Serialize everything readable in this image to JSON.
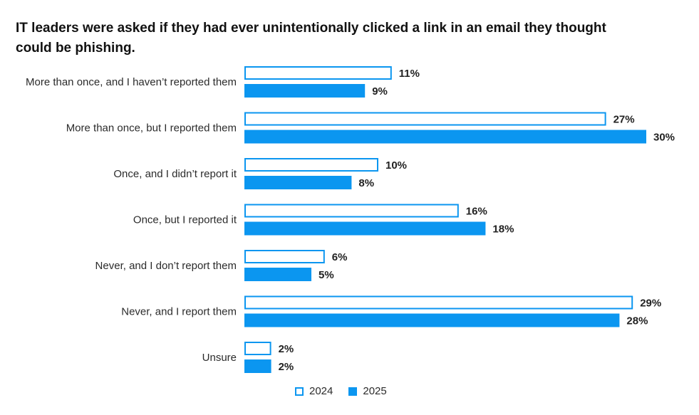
{
  "chart_data": {
    "type": "bar",
    "orientation": "horizontal",
    "title": "IT leaders were asked if they had ever unintentionally clicked a link in an email they thought could be phishing.",
    "categories": [
      "More than once, and I haven’t reported them",
      "More than once, but I reported them",
      "Once, and I didn’t report it",
      "Once, but I reported it",
      "Never, and I don’t report them",
      "Never, and I report them",
      "Unsure"
    ],
    "series": [
      {
        "name": "2024",
        "values": [
          11,
          27,
          10,
          16,
          6,
          29,
          2
        ],
        "labels": [
          "11%",
          "27%",
          "10%",
          "16%",
          "6%",
          "29%",
          "2%"
        ],
        "style": "outline"
      },
      {
        "name": "2025",
        "values": [
          9,
          30,
          8,
          18,
          5,
          28,
          2
        ],
        "labels": [
          "9%",
          "30%",
          "8%",
          "18%",
          "5%",
          "28%",
          "2%"
        ],
        "style": "filled"
      }
    ],
    "xlim": [
      0,
      30
    ],
    "grid": false,
    "legend_position": "bottom",
    "colors": {
      "bar": "#0b96f0",
      "outline_fill": "#ffffff"
    }
  }
}
